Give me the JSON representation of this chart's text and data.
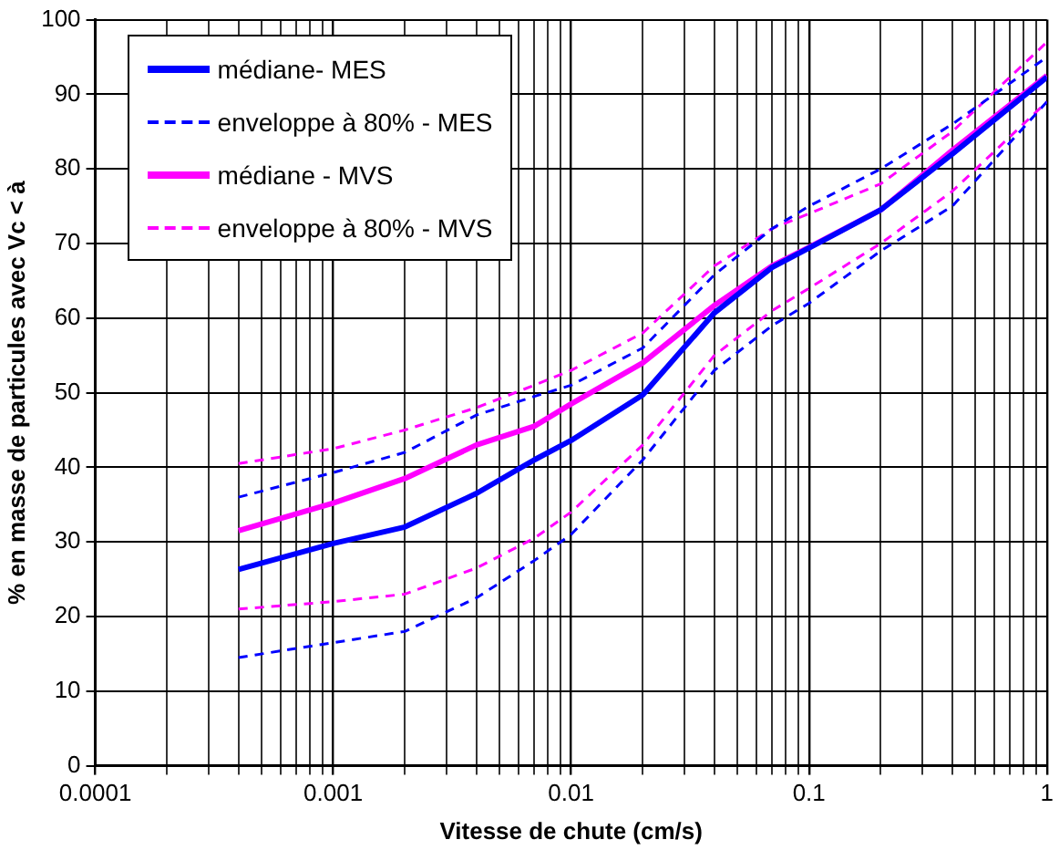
{
  "chart_data": {
    "type": "line",
    "xlabel": "Vitesse de chute (cm/s)",
    "ylabel": "% en masse de particules avec Vc < à",
    "x": [
      0.0004,
      0.001,
      0.002,
      0.004,
      0.007,
      0.01,
      0.02,
      0.04,
      0.07,
      0.1,
      0.2,
      0.4,
      1
    ],
    "series": [
      {
        "name": "médiane- MES",
        "color": "#0000ff",
        "line_style": "solid",
        "values": [
          26.3,
          29.8,
          32,
          36.5,
          41,
          43.6,
          49.7,
          60.7,
          66.8,
          69.4,
          74.5,
          82,
          92.3
        ]
      },
      {
        "name": "enveloppe à 80% - MES",
        "color": "#0000ff",
        "line_style": "dashed",
        "values": [
          36,
          39.3,
          42,
          47,
          49.5,
          51,
          56,
          65.8,
          72,
          75,
          80,
          86,
          95
        ]
      },
      {
        "name": null,
        "color": "#0000ff",
        "line_style": "dashed",
        "values": [
          14.5,
          16.5,
          18,
          22.5,
          27.5,
          31,
          41,
          53,
          59,
          62,
          69,
          75,
          89
        ]
      },
      {
        "name": "médiane - MVS",
        "color": "#ff00ff",
        "line_style": "solid",
        "values": [
          31.5,
          35.2,
          38.5,
          43,
          45.5,
          48.5,
          54,
          61.7,
          67,
          69.5,
          74.5,
          82.5,
          92.5
        ]
      },
      {
        "name": "enveloppe à 80% - MVS",
        "color": "#ff00ff",
        "line_style": "dashed",
        "values": [
          40.5,
          42.5,
          45,
          48,
          51,
          53,
          58,
          67,
          72,
          74,
          78,
          85,
          97
        ]
      },
      {
        "name": null,
        "color": "#ff00ff",
        "line_style": "dashed",
        "values": [
          21,
          22,
          23,
          26.5,
          30.5,
          34,
          43,
          55,
          61,
          64,
          70,
          77,
          89
        ]
      }
    ],
    "log": "x",
    "xlim": [
      0.0001,
      1
    ],
    "ylim": [
      0,
      100
    ],
    "xticks": [
      {
        "value": 0.0001,
        "label": "0.0001"
      },
      {
        "value": 0.0002,
        "label": null
      },
      {
        "value": 0.0003,
        "label": null
      },
      {
        "value": 0.0004,
        "label": null
      },
      {
        "value": 0.0005,
        "label": null
      },
      {
        "value": 0.0006,
        "label": null
      },
      {
        "value": 0.0007,
        "label": null
      },
      {
        "value": 0.0008,
        "label": null
      },
      {
        "value": 0.0009,
        "label": null
      },
      {
        "value": 0.001,
        "label": "0.001"
      },
      {
        "value": 0.002,
        "label": null
      },
      {
        "value": 0.003,
        "label": null
      },
      {
        "value": 0.004,
        "label": null
      },
      {
        "value": 0.005,
        "label": null
      },
      {
        "value": 0.006,
        "label": null
      },
      {
        "value": 0.007,
        "label": null
      },
      {
        "value": 0.008,
        "label": null
      },
      {
        "value": 0.009,
        "label": null
      },
      {
        "value": 0.01,
        "label": "0.01"
      },
      {
        "value": 0.02,
        "label": null
      },
      {
        "value": 0.03,
        "label": null
      },
      {
        "value": 0.04,
        "label": null
      },
      {
        "value": 0.05,
        "label": null
      },
      {
        "value": 0.06,
        "label": null
      },
      {
        "value": 0.07,
        "label": null
      },
      {
        "value": 0.08,
        "label": null
      },
      {
        "value": 0.09,
        "label": null
      },
      {
        "value": 0.1,
        "label": "0.1"
      },
      {
        "value": 0.2,
        "label": null
      },
      {
        "value": 0.3,
        "label": null
      },
      {
        "value": 0.4,
        "label": null
      },
      {
        "value": 0.5,
        "label": null
      },
      {
        "value": 0.6,
        "label": null
      },
      {
        "value": 0.7,
        "label": null
      },
      {
        "value": 0.8,
        "label": null
      },
      {
        "value": 0.9,
        "label": null
      },
      {
        "value": 1,
        "label": "1"
      }
    ],
    "yticks": [
      0,
      10,
      20,
      30,
      40,
      50,
      60,
      70,
      80,
      90,
      100
    ],
    "grid": true,
    "legend": "top left",
    "marker": "none"
  }
}
